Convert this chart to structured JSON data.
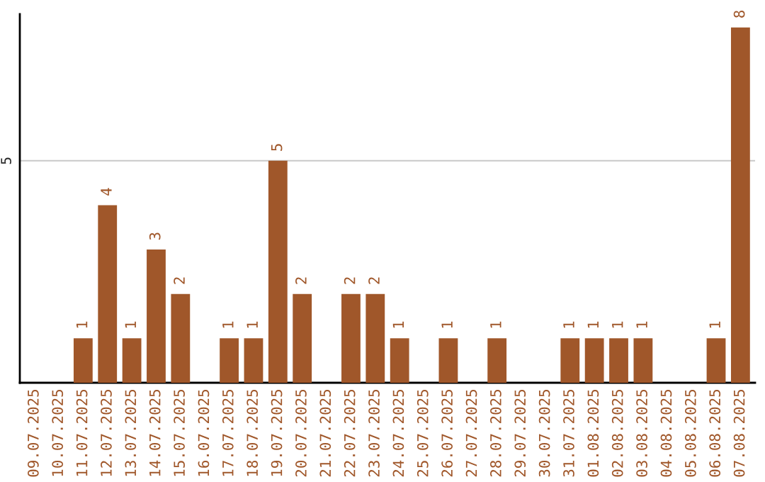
{
  "chart_data": {
    "type": "bar",
    "categories": [
      "09.07.2025",
      "10.07.2025",
      "11.07.2025",
      "12.07.2025",
      "13.07.2025",
      "14.07.2025",
      "15.07.2025",
      "16.07.2025",
      "17.07.2025",
      "18.07.2025",
      "19.07.2025",
      "20.07.2025",
      "21.07.2025",
      "22.07.2025",
      "23.07.2025",
      "24.07.2025",
      "25.07.2025",
      "26.07.2025",
      "27.07.2025",
      "28.07.2025",
      "29.07.2025",
      "30.07.2025",
      "31.07.2025",
      "01.08.2025",
      "02.08.2025",
      "03.08.2025",
      "04.08.2025",
      "05.08.2025",
      "06.08.2025",
      "07.08.2025"
    ],
    "values": [
      0,
      0,
      1,
      4,
      1,
      3,
      2,
      0,
      1,
      1,
      5,
      2,
      0,
      2,
      2,
      1,
      0,
      1,
      0,
      1,
      0,
      0,
      1,
      1,
      1,
      1,
      0,
      0,
      1,
      8
    ],
    "value_labels": [
      null,
      null,
      "1",
      "4",
      "1",
      "3",
      "2",
      null,
      "1",
      "1",
      "5",
      "2",
      null,
      "2",
      "2",
      "1",
      null,
      "1",
      null,
      "1",
      null,
      null,
      "1",
      "1",
      "1",
      "1",
      null,
      null,
      "1",
      "8"
    ],
    "color": "#a0572a",
    "ylim": [
      0,
      8.3
    ],
    "yticks": [
      5
    ],
    "grid": "y"
  }
}
